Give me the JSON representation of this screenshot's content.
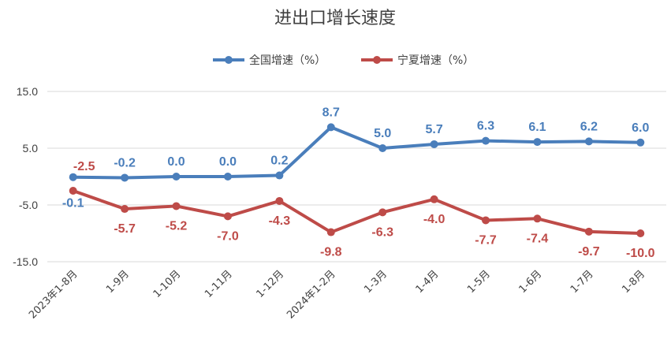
{
  "colors": {
    "national": "#4A7EBB",
    "ningxia": "#BE4B48",
    "grid": "#D9D9D9",
    "text": "#404040"
  },
  "chart_data": {
    "type": "line",
    "title": "进出口增长速度",
    "categories": [
      "2023年1-8月",
      "1-9月",
      "1-10月",
      "1-11月",
      "1-12月",
      "2024年1-2月",
      "1-3月",
      "1-4月",
      "1-5月",
      "1-6月",
      "1-7月",
      "1-8月"
    ],
    "y_ticks": [
      "15.0",
      "5.0",
      "-5.0",
      "-15.0"
    ],
    "ylim": [
      -15,
      15
    ],
    "grid": true,
    "legend_position": "top",
    "series": [
      {
        "name": "全国增速（%）",
        "values": [
          -0.1,
          -0.2,
          0.0,
          0.0,
          0.2,
          8.7,
          5.0,
          5.7,
          6.3,
          6.1,
          6.2,
          6.0
        ],
        "labels": [
          "-0.1",
          "-0.2",
          "0.0",
          "0.0",
          "0.2",
          "8.7",
          "5.0",
          "5.7",
          "6.3",
          "6.1",
          "6.2",
          "6.0"
        ]
      },
      {
        "name": "宁夏增速（%）",
        "values": [
          -2.5,
          -5.7,
          -5.2,
          -7.0,
          -4.3,
          -9.8,
          -6.3,
          -4.0,
          -7.7,
          -7.4,
          -9.7,
          -10.0
        ],
        "labels": [
          "-2.5",
          "-5.7",
          "-5.2",
          "-7.0",
          "-4.3",
          "-9.8",
          "-6.3",
          "-4.0",
          "-7.7",
          "-7.4",
          "-9.7",
          "-10.0"
        ]
      }
    ]
  }
}
